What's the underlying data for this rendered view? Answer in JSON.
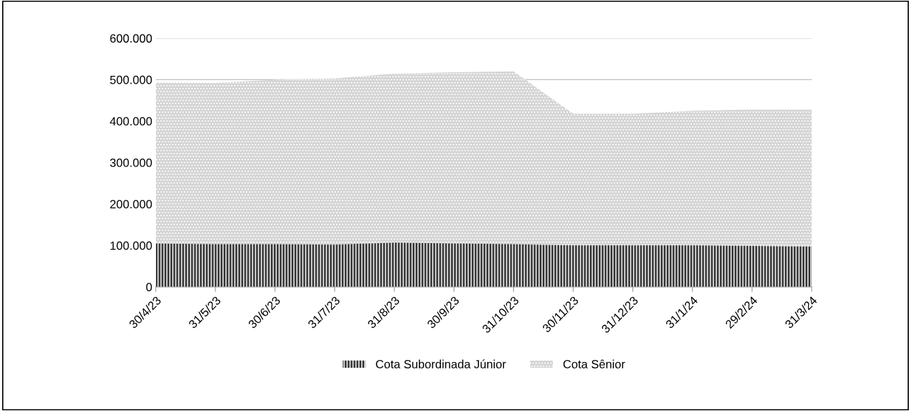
{
  "chart_data": {
    "type": "area",
    "stacked": true,
    "categories": [
      "30/4/23",
      "31/5/23",
      "30/6/23",
      "31/7/23",
      "31/8/23",
      "30/9/23",
      "31/10/23",
      "30/11/23",
      "31/12/23",
      "31/1/24",
      "29/2/24",
      "31/3/24"
    ],
    "series": [
      {
        "name": "Cota Subordinada Júnior",
        "color": "#3a3a3a",
        "values": [
          105000,
          103000,
          103000,
          102000,
          107000,
          105000,
          103000,
          100000,
          100000,
          100000,
          99000,
          97000
        ]
      },
      {
        "name": "Cota Sênior",
        "color": "#d4d4d4",
        "values": [
          388000,
          389000,
          397000,
          401000,
          408000,
          413000,
          417000,
          318000,
          318000,
          325000,
          329000,
          331000
        ]
      }
    ],
    "ylim": [
      0,
      600000
    ],
    "yticks": [
      0,
      {
        "value": 100000,
        "label": "100.000"
      },
      {
        "value": 200000,
        "label": "200.000"
      },
      {
        "value": 300000,
        "label": "300.000"
      },
      {
        "value": 400000,
        "label": "400.000"
      },
      {
        "value": 500000,
        "label": "500.000"
      },
      {
        "value": 600000,
        "label": "600.000"
      }
    ],
    "grid": "y",
    "legend": "bottom"
  }
}
